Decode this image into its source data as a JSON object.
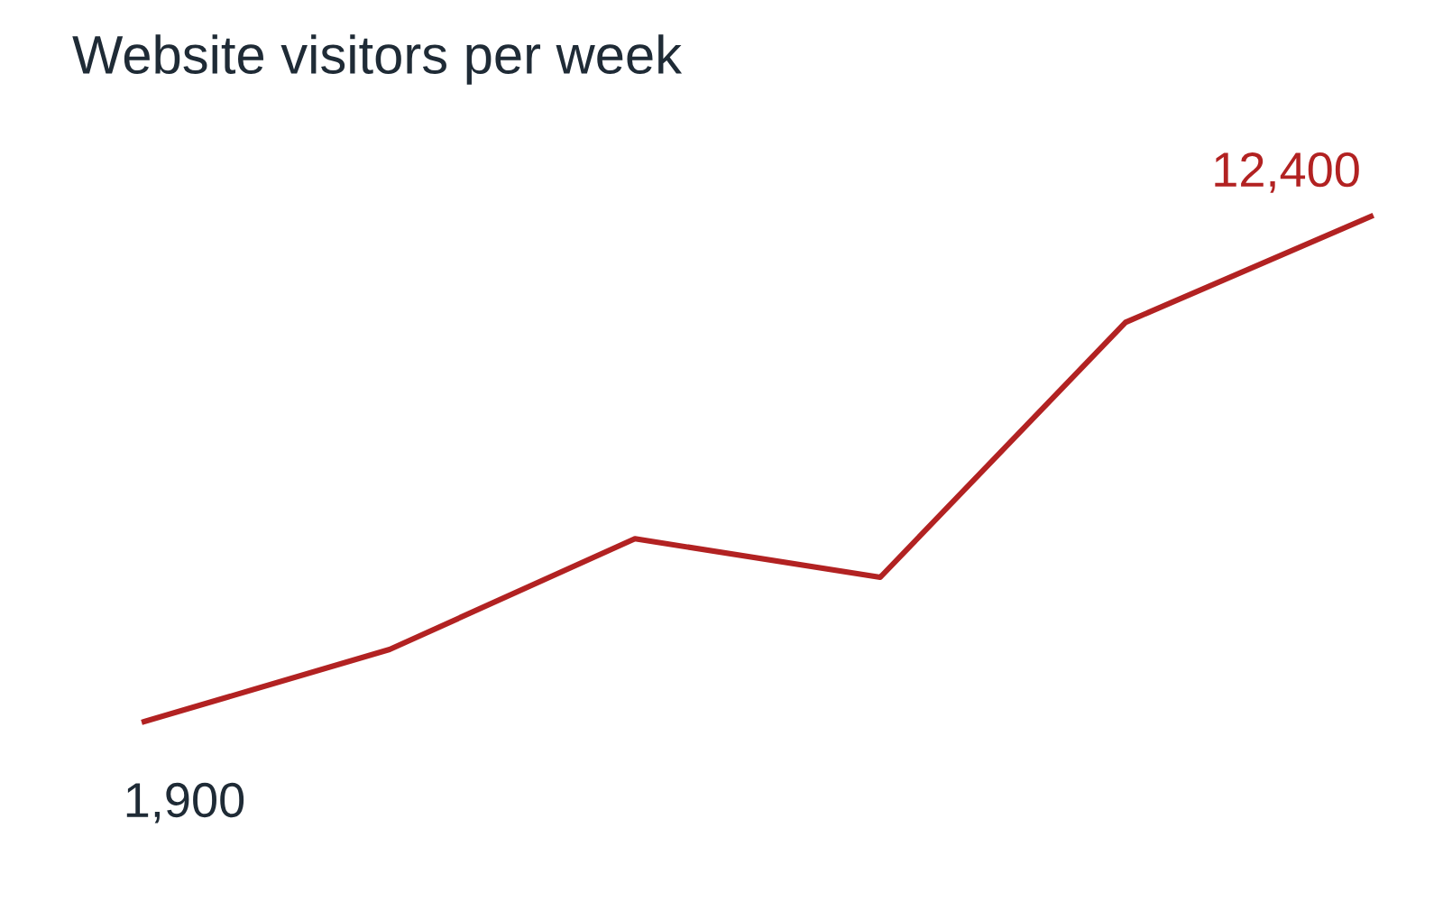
{
  "chart_data": {
    "type": "line",
    "title": "Website visitors per week",
    "categories": [
      null,
      null,
      null,
      null,
      null,
      null
    ],
    "series": [
      {
        "color": "#b22222",
        "values": [
          1900,
          3400,
          5700,
          4900,
          10200,
          12400
        ],
        "value_labels": [
          "1,900",
          null,
          null,
          null,
          null,
          "12,400"
        ]
      }
    ],
    "marker": "none",
    "line_style": "solid",
    "tick_labels": false
  }
}
